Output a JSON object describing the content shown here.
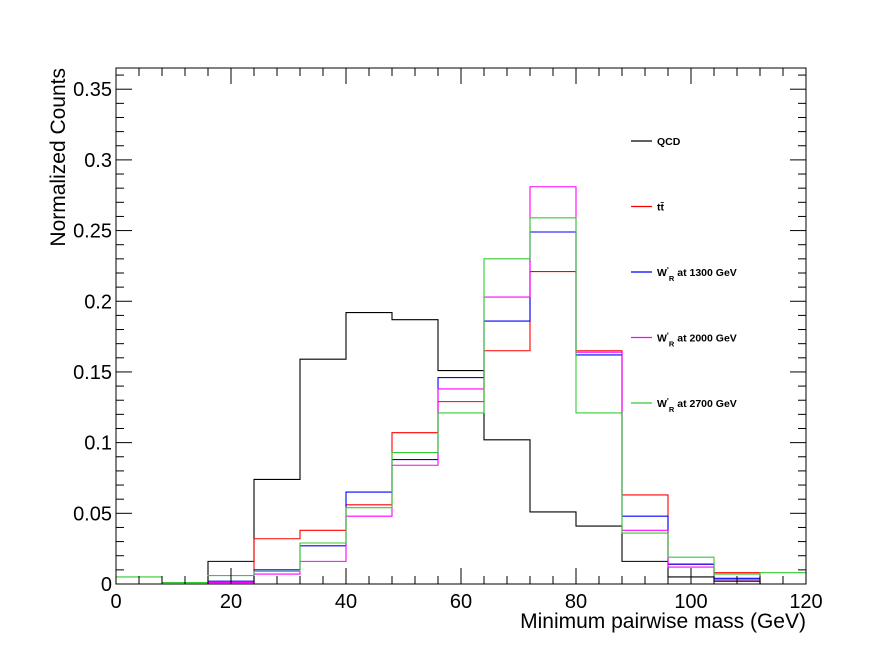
{
  "chart_data": {
    "type": "histogram",
    "title": "",
    "xlabel": "Minimum pairwise mass (GeV)",
    "ylabel": "Normalized Counts",
    "xlim": [
      0,
      120
    ],
    "ylim": [
      0,
      0.365
    ],
    "xticks": [
      0,
      20,
      40,
      60,
      80,
      100,
      120
    ],
    "xtick_labels": [
      "0",
      "20",
      "40",
      "60",
      "80",
      "100",
      "120"
    ],
    "yticks": [
      0,
      0.05,
      0.1,
      0.15,
      0.2,
      0.25,
      0.3,
      0.35
    ],
    "ytick_labels": [
      "0",
      "0.05",
      "0.1",
      "0.15",
      "0.2",
      "0.25",
      "0.3",
      "0.35"
    ],
    "bin_edges": [
      0,
      8,
      16,
      24,
      32,
      40,
      48,
      56,
      64,
      72,
      80,
      88,
      96,
      104,
      112,
      120
    ],
    "grid": false,
    "legend_position": "top-right",
    "series": [
      {
        "name": "QCD",
        "color": "#000000",
        "values": [
          0.0,
          0.0,
          0.016,
          0.074,
          0.159,
          0.192,
          0.187,
          0.151,
          0.102,
          0.051,
          0.041,
          0.016,
          0.005,
          0.002,
          0.0
        ]
      },
      {
        "name": "tt̄",
        "color": "#ff0000",
        "values": [
          0.0,
          0.0,
          0.001,
          0.032,
          0.038,
          0.056,
          0.107,
          0.129,
          0.165,
          0.221,
          0.165,
          0.063,
          0.014,
          0.008,
          0.0
        ]
      },
      {
        "name": "W'_R at 1300 GeV",
        "label_main": "W",
        "label_prime": "'",
        "label_sub": "R",
        "label_rest": "at 1300 GeV",
        "color": "#0000ff",
        "values": [
          0.0,
          0.0,
          0.002,
          0.01,
          0.027,
          0.065,
          0.088,
          0.146,
          0.186,
          0.249,
          0.162,
          0.048,
          0.014,
          0.004,
          0.0
        ]
      },
      {
        "name": "W'_R at 2000 GeV",
        "label_main": "W",
        "label_prime": "'",
        "label_sub": "R",
        "label_rest": "at 2000 GeV",
        "color": "#ff00ff",
        "values": [
          0.0,
          0.0,
          0.001,
          0.007,
          0.016,
          0.048,
          0.084,
          0.138,
          0.203,
          0.281,
          0.164,
          0.038,
          0.012,
          0.003,
          0.0
        ]
      },
      {
        "name": "W'_R at 2700 GeV",
        "label_main": "W",
        "label_prime": "'",
        "label_sub": "R",
        "label_rest": "at 2700 GeV",
        "color": "#33cc33",
        "values": [
          0.005,
          0.001,
          0.006,
          0.009,
          0.029,
          0.054,
          0.093,
          0.121,
          0.23,
          0.259,
          0.121,
          0.036,
          0.019,
          0.007,
          0.008
        ]
      }
    ]
  }
}
